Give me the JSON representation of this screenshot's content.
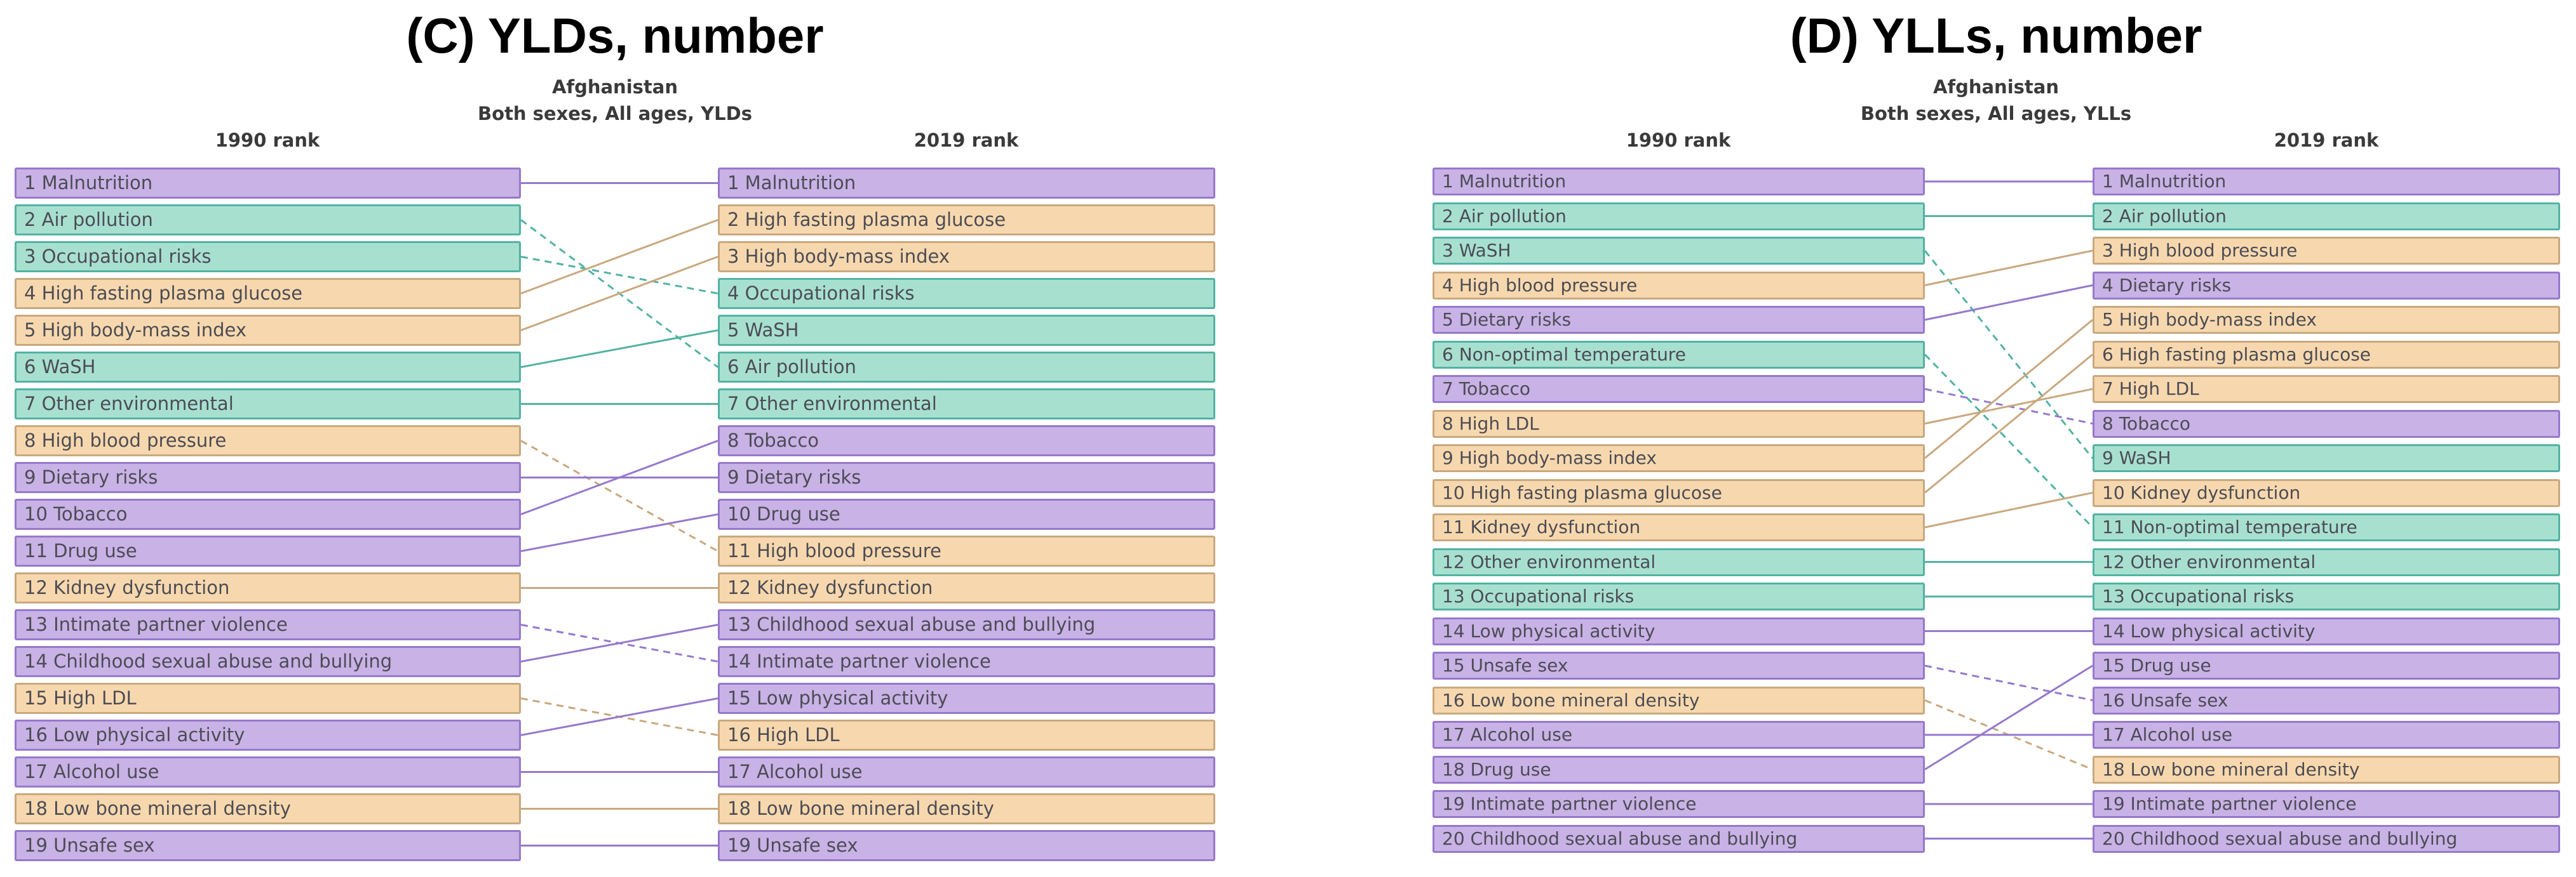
{
  "categories": {
    "behavioral": {
      "fill": "#c9b2e6",
      "stroke": "#9678cc"
    },
    "environmental": {
      "fill": "#a8e0d0",
      "stroke": "#52b2a2"
    },
    "metabolic": {
      "fill": "#f7d8ae",
      "stroke": "#c9a87e"
    }
  },
  "text_color": "#4c4c55",
  "chart_data": [
    {
      "type": "table",
      "panel": "C",
      "title": "(C) YLDs, number",
      "subtitle1": "Afghanistan",
      "subtitle2": "Both sexes, All ages, YLDs",
      "left_header": "1990 rank",
      "right_header": "2019 rank",
      "left": [
        {
          "rank": 1,
          "name": "Malnutrition",
          "category": "behavioral"
        },
        {
          "rank": 2,
          "name": "Air pollution",
          "category": "environmental"
        },
        {
          "rank": 3,
          "name": "Occupational risks",
          "category": "environmental"
        },
        {
          "rank": 4,
          "name": "High fasting plasma glucose",
          "category": "metabolic"
        },
        {
          "rank": 5,
          "name": "High body-mass index",
          "category": "metabolic"
        },
        {
          "rank": 6,
          "name": "WaSH",
          "category": "environmental"
        },
        {
          "rank": 7,
          "name": "Other environmental",
          "category": "environmental"
        },
        {
          "rank": 8,
          "name": "High blood pressure",
          "category": "metabolic"
        },
        {
          "rank": 9,
          "name": "Dietary risks",
          "category": "behavioral"
        },
        {
          "rank": 10,
          "name": "Tobacco",
          "category": "behavioral"
        },
        {
          "rank": 11,
          "name": "Drug use",
          "category": "behavioral"
        },
        {
          "rank": 12,
          "name": "Kidney dysfunction",
          "category": "metabolic"
        },
        {
          "rank": 13,
          "name": "Intimate partner violence",
          "category": "behavioral"
        },
        {
          "rank": 14,
          "name": "Childhood sexual abuse and bullying",
          "category": "behavioral"
        },
        {
          "rank": 15,
          "name": "High LDL",
          "category": "metabolic"
        },
        {
          "rank": 16,
          "name": "Low physical activity",
          "category": "behavioral"
        },
        {
          "rank": 17,
          "name": "Alcohol use",
          "category": "behavioral"
        },
        {
          "rank": 18,
          "name": "Low bone mineral density",
          "category": "metabolic"
        },
        {
          "rank": 19,
          "name": "Unsafe sex",
          "category": "behavioral"
        }
      ],
      "right": [
        {
          "rank": 1,
          "name": "Malnutrition",
          "category": "behavioral"
        },
        {
          "rank": 2,
          "name": "High fasting plasma glucose",
          "category": "metabolic"
        },
        {
          "rank": 3,
          "name": "High body-mass index",
          "category": "metabolic"
        },
        {
          "rank": 4,
          "name": "Occupational risks",
          "category": "environmental"
        },
        {
          "rank": 5,
          "name": "WaSH",
          "category": "environmental"
        },
        {
          "rank": 6,
          "name": "Air pollution",
          "category": "environmental"
        },
        {
          "rank": 7,
          "name": "Other environmental",
          "category": "environmental"
        },
        {
          "rank": 8,
          "name": "Tobacco",
          "category": "behavioral"
        },
        {
          "rank": 9,
          "name": "Dietary risks",
          "category": "behavioral"
        },
        {
          "rank": 10,
          "name": "Drug use",
          "category": "behavioral"
        },
        {
          "rank": 11,
          "name": "High blood pressure",
          "category": "metabolic"
        },
        {
          "rank": 12,
          "name": "Kidney dysfunction",
          "category": "metabolic"
        },
        {
          "rank": 13,
          "name": "Childhood sexual abuse and bullying",
          "category": "behavioral"
        },
        {
          "rank": 14,
          "name": "Intimate partner violence",
          "category": "behavioral"
        },
        {
          "rank": 15,
          "name": "Low physical activity",
          "category": "behavioral"
        },
        {
          "rank": 16,
          "name": "High LDL",
          "category": "metabolic"
        },
        {
          "rank": 17,
          "name": "Alcohol use",
          "category": "behavioral"
        },
        {
          "rank": 18,
          "name": "Low bone mineral density",
          "category": "metabolic"
        },
        {
          "rank": 19,
          "name": "Unsafe sex",
          "category": "behavioral"
        }
      ],
      "links": [
        {
          "from": 1,
          "to": 1,
          "style": "solid"
        },
        {
          "from": 2,
          "to": 6,
          "style": "dashed"
        },
        {
          "from": 3,
          "to": 4,
          "style": "dashed"
        },
        {
          "from": 4,
          "to": 2,
          "style": "solid"
        },
        {
          "from": 5,
          "to": 3,
          "style": "solid"
        },
        {
          "from": 6,
          "to": 5,
          "style": "solid"
        },
        {
          "from": 7,
          "to": 7,
          "style": "solid"
        },
        {
          "from": 8,
          "to": 11,
          "style": "dashed"
        },
        {
          "from": 9,
          "to": 9,
          "style": "solid"
        },
        {
          "from": 10,
          "to": 8,
          "style": "solid"
        },
        {
          "from": 11,
          "to": 10,
          "style": "solid"
        },
        {
          "from": 12,
          "to": 12,
          "style": "solid"
        },
        {
          "from": 13,
          "to": 14,
          "style": "dashed"
        },
        {
          "from": 14,
          "to": 13,
          "style": "solid"
        },
        {
          "from": 15,
          "to": 16,
          "style": "dashed"
        },
        {
          "from": 16,
          "to": 15,
          "style": "solid"
        },
        {
          "from": 17,
          "to": 17,
          "style": "solid"
        },
        {
          "from": 18,
          "to": 18,
          "style": "solid"
        },
        {
          "from": 19,
          "to": 19,
          "style": "solid"
        }
      ]
    },
    {
      "type": "table",
      "panel": "D",
      "title": "(D) YLLs, number",
      "subtitle1": "Afghanistan",
      "subtitle2": "Both sexes, All ages, YLLs",
      "left_header": "1990 rank",
      "right_header": "2019 rank",
      "left": [
        {
          "rank": 1,
          "name": "Malnutrition",
          "category": "behavioral"
        },
        {
          "rank": 2,
          "name": "Air pollution",
          "category": "environmental"
        },
        {
          "rank": 3,
          "name": "WaSH",
          "category": "environmental"
        },
        {
          "rank": 4,
          "name": "High blood pressure",
          "category": "metabolic"
        },
        {
          "rank": 5,
          "name": "Dietary risks",
          "category": "behavioral"
        },
        {
          "rank": 6,
          "name": "Non-optimal temperature",
          "category": "environmental"
        },
        {
          "rank": 7,
          "name": "Tobacco",
          "category": "behavioral"
        },
        {
          "rank": 8,
          "name": "High LDL",
          "category": "metabolic"
        },
        {
          "rank": 9,
          "name": "High body-mass index",
          "category": "metabolic"
        },
        {
          "rank": 10,
          "name": "High fasting plasma glucose",
          "category": "metabolic"
        },
        {
          "rank": 11,
          "name": "Kidney dysfunction",
          "category": "metabolic"
        },
        {
          "rank": 12,
          "name": "Other environmental",
          "category": "environmental"
        },
        {
          "rank": 13,
          "name": "Occupational risks",
          "category": "environmental"
        },
        {
          "rank": 14,
          "name": "Low physical activity",
          "category": "behavioral"
        },
        {
          "rank": 15,
          "name": "Unsafe sex",
          "category": "behavioral"
        },
        {
          "rank": 16,
          "name": "Low bone mineral density",
          "category": "metabolic"
        },
        {
          "rank": 17,
          "name": "Alcohol use",
          "category": "behavioral"
        },
        {
          "rank": 18,
          "name": "Drug use",
          "category": "behavioral"
        },
        {
          "rank": 19,
          "name": "Intimate partner violence",
          "category": "behavioral"
        },
        {
          "rank": 20,
          "name": "Childhood sexual abuse and bullying",
          "category": "behavioral"
        }
      ],
      "right": [
        {
          "rank": 1,
          "name": "Malnutrition",
          "category": "behavioral"
        },
        {
          "rank": 2,
          "name": "Air pollution",
          "category": "environmental"
        },
        {
          "rank": 3,
          "name": "High blood pressure",
          "category": "metabolic"
        },
        {
          "rank": 4,
          "name": "Dietary risks",
          "category": "behavioral"
        },
        {
          "rank": 5,
          "name": "High body-mass index",
          "category": "metabolic"
        },
        {
          "rank": 6,
          "name": "High fasting plasma glucose",
          "category": "metabolic"
        },
        {
          "rank": 7,
          "name": "High LDL",
          "category": "metabolic"
        },
        {
          "rank": 8,
          "name": "Tobacco",
          "category": "behavioral"
        },
        {
          "rank": 9,
          "name": "WaSH",
          "category": "environmental"
        },
        {
          "rank": 10,
          "name": "Kidney dysfunction",
          "category": "metabolic"
        },
        {
          "rank": 11,
          "name": "Non-optimal temperature",
          "category": "environmental"
        },
        {
          "rank": 12,
          "name": "Other environmental",
          "category": "environmental"
        },
        {
          "rank": 13,
          "name": "Occupational risks",
          "category": "environmental"
        },
        {
          "rank": 14,
          "name": "Low physical activity",
          "category": "behavioral"
        },
        {
          "rank": 15,
          "name": "Drug use",
          "category": "behavioral"
        },
        {
          "rank": 16,
          "name": "Unsafe sex",
          "category": "behavioral"
        },
        {
          "rank": 17,
          "name": "Alcohol use",
          "category": "behavioral"
        },
        {
          "rank": 18,
          "name": "Low bone mineral density",
          "category": "metabolic"
        },
        {
          "rank": 19,
          "name": "Intimate partner violence",
          "category": "behavioral"
        },
        {
          "rank": 20,
          "name": "Childhood sexual abuse and bullying",
          "category": "behavioral"
        }
      ],
      "links": [
        {
          "from": 1,
          "to": 1,
          "style": "solid"
        },
        {
          "from": 2,
          "to": 2,
          "style": "solid"
        },
        {
          "from": 3,
          "to": 9,
          "style": "dashed"
        },
        {
          "from": 4,
          "to": 3,
          "style": "solid"
        },
        {
          "from": 5,
          "to": 4,
          "style": "solid"
        },
        {
          "from": 6,
          "to": 11,
          "style": "dashed"
        },
        {
          "from": 7,
          "to": 8,
          "style": "dashed"
        },
        {
          "from": 8,
          "to": 7,
          "style": "solid"
        },
        {
          "from": 9,
          "to": 5,
          "style": "solid"
        },
        {
          "from": 10,
          "to": 6,
          "style": "solid"
        },
        {
          "from": 11,
          "to": 10,
          "style": "solid"
        },
        {
          "from": 12,
          "to": 12,
          "style": "solid"
        },
        {
          "from": 13,
          "to": 13,
          "style": "solid"
        },
        {
          "from": 14,
          "to": 14,
          "style": "solid"
        },
        {
          "from": 15,
          "to": 16,
          "style": "dashed"
        },
        {
          "from": 16,
          "to": 18,
          "style": "dashed"
        },
        {
          "from": 17,
          "to": 17,
          "style": "solid"
        },
        {
          "from": 18,
          "to": 15,
          "style": "solid"
        },
        {
          "from": 19,
          "to": 19,
          "style": "solid"
        },
        {
          "from": 20,
          "to": 20,
          "style": "solid"
        }
      ]
    }
  ]
}
